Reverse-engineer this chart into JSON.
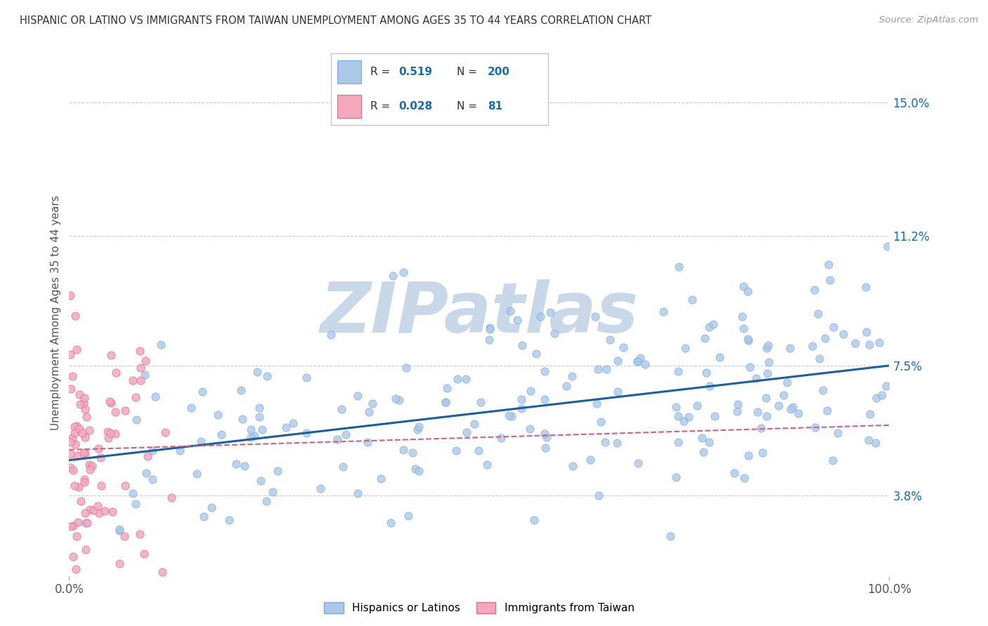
{
  "title": "HISPANIC OR LATINO VS IMMIGRANTS FROM TAIWAN UNEMPLOYMENT AMONG AGES 35 TO 44 YEARS CORRELATION CHART",
  "source": "Source: ZipAtlas.com",
  "ylabel": "Unemployment Among Ages 35 to 44 years",
  "xlim": [
    0,
    100
  ],
  "ylim": [
    1.5,
    16.5
  ],
  "yticks": [
    3.8,
    7.5,
    11.2,
    15.0
  ],
  "ytick_labels": [
    "3.8%",
    "7.5%",
    "11.2%",
    "15.0%"
  ],
  "xtick_labels": [
    "0.0%",
    "100.0%"
  ],
  "series1": {
    "label": "Hispanics or Latinos",
    "color": "#aac8e8",
    "edge_color": "#80aad8",
    "R": 0.519,
    "N": 200,
    "trend_color": "#1a5fa0",
    "trend_x": [
      0,
      100
    ],
    "trend_y": [
      4.8,
      7.5
    ]
  },
  "series2": {
    "label": "Immigrants from Taiwan",
    "color": "#f4a8bc",
    "edge_color": "#d87090",
    "R": 0.028,
    "N": 81,
    "trend_color": "#d06080",
    "trend_x": [
      0,
      100
    ],
    "trend_y": [
      5.1,
      5.8
    ]
  },
  "legend_color": "#1a6bb5",
  "watermark": "ZIPatlas",
  "watermark_color": "#c8d8e8",
  "background_color": "#ffffff",
  "grid_color": "#cccccc",
  "title_color": "#333333",
  "axis_label_color": "#555555"
}
